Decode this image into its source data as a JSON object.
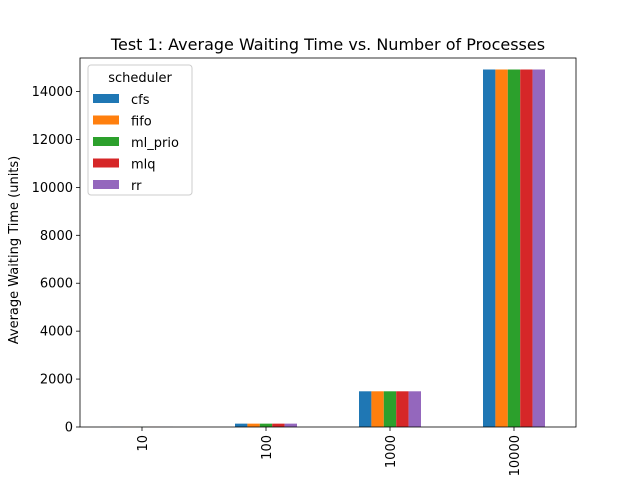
{
  "chart_data": {
    "type": "bar",
    "title": "Test 1: Average Waiting Time vs. Number of Processes",
    "xlabel": "",
    "ylabel": "Average Waiting Time (units)",
    "categories": [
      "10",
      "100",
      "1000",
      "10000"
    ],
    "ylim": [
      0,
      15400
    ],
    "yticks": [
      "0",
      "2000",
      "4000",
      "6000",
      "8000",
      "10000",
      "12000",
      "14000"
    ],
    "ytick_values": [
      0,
      2000,
      4000,
      6000,
      8000,
      10000,
      12000,
      14000
    ],
    "grid": false,
    "legend": {
      "title": "scheduler",
      "placement": "upper-left"
    },
    "series": [
      {
        "name": "cfs",
        "color": "#1f77b4",
        "values": [
          5,
          140,
          1490,
          14920
        ]
      },
      {
        "name": "fifo",
        "color": "#ff7f0e",
        "values": [
          5,
          140,
          1490,
          14920
        ]
      },
      {
        "name": "ml_prio",
        "color": "#2ca02c",
        "values": [
          5,
          140,
          1490,
          14920
        ]
      },
      {
        "name": "mlq",
        "color": "#d62728",
        "values": [
          5,
          140,
          1490,
          14920
        ]
      },
      {
        "name": "rr",
        "color": "#9467bd",
        "values": [
          5,
          140,
          1490,
          14920
        ]
      }
    ]
  }
}
